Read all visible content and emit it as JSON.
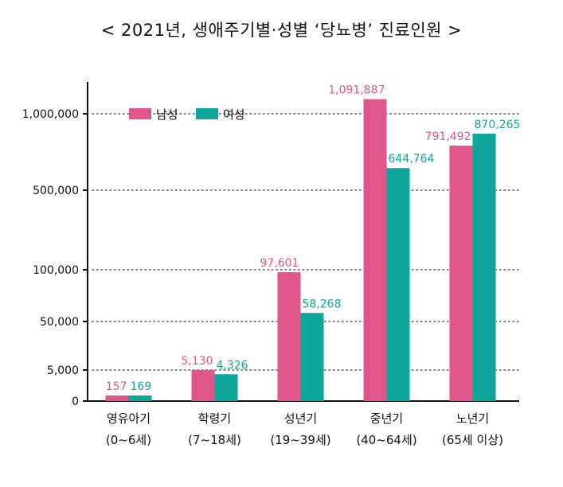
{
  "chart_data": {
    "type": "bar",
    "title": "< 2021년, 생애주기별·성별 ‘당뇨병’ 진료인원 >",
    "categories": [
      {
        "name": "영유아기",
        "range": "(0~6세)"
      },
      {
        "name": "학령기",
        "range": "(7~18세)"
      },
      {
        "name": "성년기",
        "range": "(19~39세)"
      },
      {
        "name": "중년기",
        "range": "(40~64세)"
      },
      {
        "name": "노년기",
        "range": "(65세 이상)"
      }
    ],
    "series": [
      {
        "name": "남성",
        "color": "#e0558a",
        "values": [
          157,
          5130,
          97601,
          1091887,
          791492
        ],
        "labels": [
          "157",
          "5,130",
          "97,601",
          "1,091,887",
          "791,492"
        ]
      },
      {
        "name": "여성",
        "color": "#0ea69b",
        "values": [
          169,
          4326,
          58268,
          644764,
          870265
        ],
        "labels": [
          "169",
          "4,326",
          "58,268",
          "644,764",
          "870,265"
        ]
      }
    ],
    "y_ticks": [
      {
        "value": 0,
        "label": "0"
      },
      {
        "value": 5000,
        "label": "5,000"
      },
      {
        "value": 50000,
        "label": "50,000"
      },
      {
        "value": 100000,
        "label": "100,000"
      },
      {
        "value": 500000,
        "label": "500,000"
      },
      {
        "value": 1000000,
        "label": "1,000,000"
      }
    ],
    "y_scale": "broken (non-linear)",
    "grid": "dotted horizontal at ticks",
    "legend_position": "top-left"
  }
}
